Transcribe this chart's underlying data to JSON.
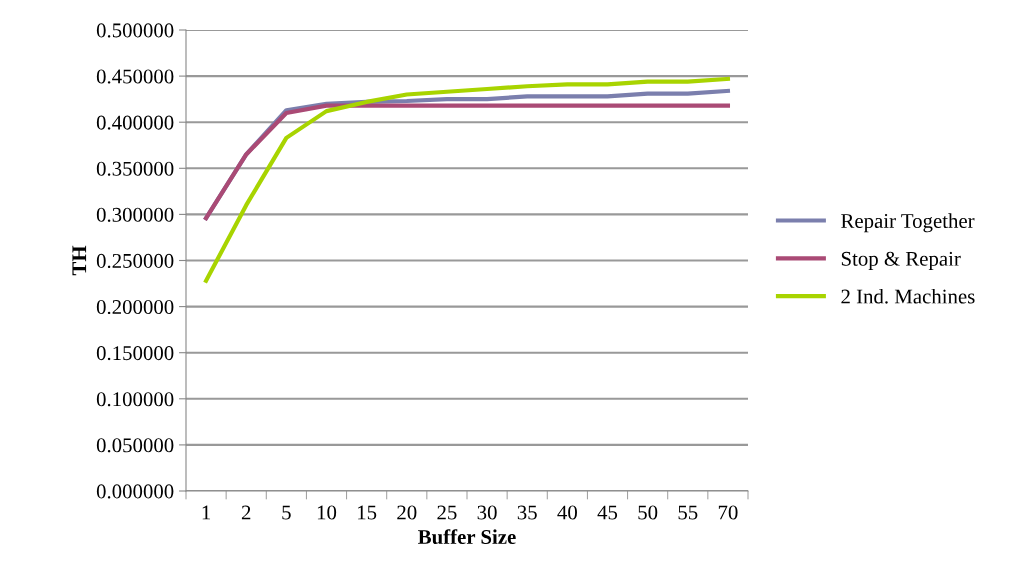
{
  "chart_data": {
    "type": "line",
    "xlabel": "Buffer Size",
    "ylabel": "TH",
    "categories": [
      "1",
      "2",
      "5",
      "10",
      "15",
      "20",
      "25",
      "30",
      "35",
      "40",
      "45",
      "50",
      "55",
      "70"
    ],
    "series": [
      {
        "name": "Repair Together",
        "color": "#7b7fad",
        "values": [
          0.296,
          0.365,
          0.413,
          0.42,
          0.422,
          0.423,
          0.425,
          0.425,
          0.428,
          0.428,
          0.428,
          0.431,
          0.431,
          0.434
        ]
      },
      {
        "name": "Stop & Repair",
        "color": "#aa4a75",
        "values": [
          0.296,
          0.365,
          0.41,
          0.418,
          0.418,
          0.418,
          0.418,
          0.418,
          0.418,
          0.418,
          0.418,
          0.418,
          0.418,
          0.418
        ]
      },
      {
        "name": "2 Ind. Machines",
        "color": "#a8d400",
        "values": [
          0.228,
          0.31,
          0.383,
          0.412,
          0.422,
          0.43,
          0.433,
          0.436,
          0.439,
          0.441,
          0.441,
          0.444,
          0.444,
          0.447
        ]
      }
    ],
    "ylim": [
      0,
      0.5
    ],
    "yticks": [
      {
        "value": 0,
        "label": "0.000000"
      },
      {
        "value": 0.05,
        "label": "0.050000"
      },
      {
        "value": 0.1,
        "label": "0.100000"
      },
      {
        "value": 0.15,
        "label": "0.150000"
      },
      {
        "value": 0.2,
        "label": "0.200000"
      },
      {
        "value": 0.25,
        "label": "0.250000"
      },
      {
        "value": 0.3,
        "label": "0.300000"
      },
      {
        "value": 0.35,
        "label": "0.350000"
      },
      {
        "value": 0.4,
        "label": "0.400000"
      },
      {
        "value": 0.45,
        "label": "0.450000"
      },
      {
        "value": 0.5,
        "label": "0.500000"
      }
    ],
    "grid": "y",
    "legend": "right",
    "marker": "none",
    "line_style": "solid"
  }
}
